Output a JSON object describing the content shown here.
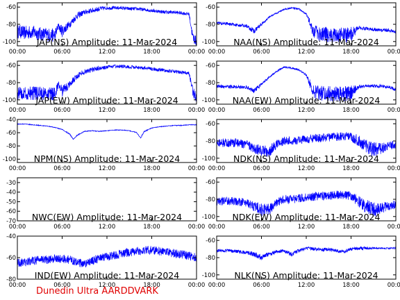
{
  "footer": "Dunedin Ultra AARDDVARK",
  "series_color": "#0000ff",
  "x_ticks": [
    "00:00",
    "06:00",
    "12:00",
    "18:00",
    "00:00"
  ],
  "chart_data": [
    {
      "type": "line",
      "title": "JAP(NS) Amplitude: 11-Mar-2024",
      "ylim": [
        -105,
        -55
      ],
      "yticks": [
        -100,
        -80,
        -60
      ],
      "x": [
        0,
        1,
        2,
        3,
        4,
        5,
        5.5,
        6,
        7,
        8,
        9,
        10,
        11,
        12,
        13,
        14,
        15,
        16,
        17,
        18,
        19,
        20,
        21,
        22,
        23,
        23.5,
        24
      ],
      "values": [
        -88,
        -90,
        -89,
        -91,
        -92,
        -93,
        -82,
        -88,
        -80,
        -70,
        -66,
        -64,
        -62,
        -61,
        -61,
        -61,
        -62,
        -62,
        -63,
        -64,
        -65,
        -66,
        -66,
        -67,
        -68,
        -95,
        -100
      ],
      "noise": [
        8,
        8,
        8,
        8,
        8,
        8,
        4,
        7,
        4,
        4,
        3,
        3,
        3,
        2,
        2,
        2,
        2,
        2,
        2,
        2,
        2,
        2,
        2,
        2,
        2,
        6,
        6
      ]
    },
    {
      "type": "line",
      "title": "NAA(NS) Amplitude: 11-Mar-2024",
      "ylim": [
        -105,
        -55
      ],
      "yticks": [
        -100,
        -80,
        -60
      ],
      "x": [
        0,
        2,
        4,
        5,
        6,
        7,
        8,
        9,
        10,
        11,
        12,
        13,
        14,
        15,
        16,
        17,
        18,
        19,
        20,
        21,
        22,
        23,
        24
      ],
      "values": [
        -78,
        -80,
        -82,
        -88,
        -80,
        -72,
        -67,
        -63,
        -61,
        -62,
        -68,
        -90,
        -91,
        -92,
        -92,
        -93,
        -92,
        -84,
        -85,
        -86,
        -87,
        -87,
        -89
      ],
      "noise": [
        2,
        2,
        2,
        3,
        2,
        1,
        1,
        1,
        1,
        1,
        1,
        9,
        9,
        9,
        9,
        9,
        9,
        2,
        2,
        2,
        2,
        2,
        2
      ]
    },
    {
      "type": "line",
      "title": "JAP(EW) Amplitude: 11-Mar-2024",
      "ylim": [
        -105,
        -55
      ],
      "yticks": [
        -100,
        -80,
        -60
      ],
      "x": [
        0,
        1,
        2,
        3,
        4,
        5,
        5.5,
        6,
        7,
        8,
        9,
        10,
        11,
        12,
        13,
        14,
        15,
        16,
        17,
        18,
        19,
        20,
        21,
        22,
        23,
        23.5,
        24
      ],
      "values": [
        -92,
        -93,
        -92,
        -93,
        -93,
        -94,
        -82,
        -90,
        -82,
        -72,
        -67,
        -65,
        -63,
        -62,
        -61,
        -61,
        -62,
        -62,
        -63,
        -64,
        -65,
        -66,
        -67,
        -68,
        -69,
        -90,
        -98
      ],
      "noise": [
        8,
        8,
        8,
        8,
        8,
        8,
        4,
        7,
        4,
        4,
        3,
        3,
        3,
        2,
        2,
        2,
        2,
        2,
        2,
        2,
        2,
        2,
        2,
        2,
        2,
        6,
        6
      ]
    },
    {
      "type": "line",
      "title": "NAA(EW) Amplitude: 11-Mar-2024",
      "ylim": [
        -105,
        -55
      ],
      "yticks": [
        -100,
        -80,
        -60
      ],
      "x": [
        0,
        2,
        4,
        5,
        6,
        7,
        8,
        9,
        10,
        11,
        12,
        13,
        14,
        15,
        16,
        17,
        18,
        19,
        20,
        21,
        22,
        23,
        24
      ],
      "values": [
        -84,
        -85,
        -85,
        -90,
        -82,
        -74,
        -67,
        -62,
        -63,
        -65,
        -71,
        -92,
        -92,
        -93,
        -93,
        -93,
        -92,
        -85,
        -84,
        -84,
        -84,
        -85,
        -88
      ],
      "noise": [
        2,
        2,
        2,
        3,
        2,
        1,
        1,
        1,
        1,
        1,
        1,
        9,
        9,
        9,
        9,
        9,
        9,
        2,
        2,
        2,
        2,
        2,
        2
      ]
    },
    {
      "type": "line",
      "title": "NPM(NS) Amplitude: 11-Mar-2024",
      "ylim": [
        -105,
        -40
      ],
      "yticks": [
        -100,
        -80,
        -60,
        -40
      ],
      "x": [
        0,
        1,
        2,
        3,
        4,
        5,
        6,
        7,
        7.5,
        8,
        9,
        10,
        11,
        12,
        13,
        14,
        15,
        16,
        16.5,
        17,
        18,
        19,
        20,
        21,
        22,
        23,
        24
      ],
      "values": [
        -47,
        -47,
        -48,
        -49,
        -50,
        -52,
        -55,
        -62,
        -70,
        -64,
        -58,
        -57,
        -58,
        -57,
        -56,
        -56,
        -57,
        -60,
        -68,
        -58,
        -53,
        -51,
        -50,
        -49,
        -49,
        -48,
        -48
      ],
      "noise": [
        0.5,
        0.5,
        0.5,
        0.5,
        0.5,
        0.5,
        0.5,
        0.8,
        0.8,
        0.8,
        0.5,
        0.5,
        0.5,
        0.5,
        0.5,
        0.5,
        0.5,
        0.8,
        0.8,
        0.8,
        0.5,
        0.5,
        0.5,
        0.5,
        0.5,
        0.5,
        0.5
      ]
    },
    {
      "type": "line",
      "title": "NDK(NS) Amplitude: 11-Mar-2024",
      "ylim": [
        -105,
        -55
      ],
      "yticks": [
        -100,
        -80,
        -60
      ],
      "x": [
        0,
        2,
        4,
        5,
        6,
        7,
        8,
        9,
        10,
        11,
        12,
        13,
        14,
        15,
        16,
        17,
        18,
        19,
        20,
        21,
        22,
        23,
        24
      ],
      "values": [
        -82,
        -82,
        -84,
        -88,
        -92,
        -92,
        -84,
        -80,
        -80,
        -79,
        -78,
        -77,
        -76,
        -76,
        -75,
        -75,
        -75,
        -80,
        -86,
        -90,
        -88,
        -86,
        -84
      ],
      "noise": [
        5,
        5,
        5,
        6,
        7,
        7,
        5,
        5,
        5,
        5,
        5,
        5,
        5,
        5,
        5,
        5,
        5,
        7,
        8,
        9,
        7,
        5,
        5
      ]
    },
    {
      "type": "line",
      "title": "NWC(EW) Amplitude: 11-Mar-2024",
      "ylim": [
        -70,
        -25
      ],
      "yticks": [
        -70,
        -60,
        -50,
        -40,
        -30
      ],
      "x": [],
      "values": [],
      "noise": []
    },
    {
      "type": "line",
      "title": "NDK(EW) Amplitude: 11-Mar-2024",
      "ylim": [
        -105,
        -55
      ],
      "yticks": [
        -100,
        -80,
        -60
      ],
      "x": [
        0,
        2,
        4,
        5,
        6,
        7,
        8,
        9,
        10,
        11,
        12,
        13,
        14,
        15,
        16,
        17,
        18,
        19,
        20,
        21,
        22,
        23,
        24
      ],
      "values": [
        -82,
        -82,
        -84,
        -88,
        -92,
        -92,
        -84,
        -80,
        -80,
        -79,
        -78,
        -77,
        -76,
        -76,
        -75,
        -75,
        -76,
        -82,
        -88,
        -92,
        -90,
        -88,
        -86
      ],
      "noise": [
        5,
        5,
        5,
        6,
        7,
        7,
        5,
        5,
        5,
        5,
        5,
        5,
        5,
        5,
        5,
        5,
        5,
        7,
        8,
        9,
        7,
        5,
        5
      ]
    },
    {
      "type": "line",
      "title": "IND(EW) Amplitude: 11-Mar-2024",
      "ylim": [
        -80,
        -40
      ],
      "yticks": [
        -80,
        -60,
        -40
      ],
      "x": [
        0,
        1,
        2,
        3,
        4,
        5,
        6,
        7,
        8,
        9,
        10,
        11,
        12,
        13,
        14,
        15,
        16,
        17,
        18,
        19,
        20,
        21,
        22,
        23,
        24
      ],
      "values": [
        -65,
        -64,
        -63,
        -62,
        -62,
        -61,
        -61,
        -62,
        -64,
        -66,
        -63,
        -61,
        -59,
        -58,
        -56,
        -55,
        -54,
        -53,
        -53,
        -54,
        -55,
        -56,
        -57,
        -58,
        -60
      ],
      "noise": [
        4,
        4,
        4,
        4,
        4,
        4,
        4,
        4,
        4,
        4,
        4,
        4,
        4,
        4,
        4,
        4,
        4,
        4,
        4,
        4,
        4,
        4,
        4,
        4,
        4
      ]
    },
    {
      "type": "line",
      "title": "NLK(NS) Amplitude: 11-Mar-2024",
      "ylim": [
        -105,
        -55
      ],
      "yticks": [
        -100,
        -80,
        -60
      ],
      "x": [
        0,
        1,
        2,
        3,
        4,
        5,
        6,
        7,
        8,
        9,
        10,
        11,
        12,
        13,
        14,
        15,
        16,
        17,
        18,
        19,
        20,
        21,
        22,
        23,
        24
      ],
      "values": [
        -72,
        -72,
        -72,
        -73,
        -74,
        -76,
        -80,
        -76,
        -73,
        -72,
        -76,
        -72,
        -69,
        -70,
        -71,
        -70,
        -72,
        -73,
        -70,
        -69,
        -69,
        -69,
        -69,
        -69,
        -69
      ],
      "noise": [
        2,
        2,
        2,
        2,
        2,
        3,
        3,
        3,
        2,
        2,
        3,
        2,
        2,
        2,
        2,
        2,
        2,
        2,
        2,
        2,
        2,
        1,
        1,
        1,
        1
      ]
    }
  ]
}
